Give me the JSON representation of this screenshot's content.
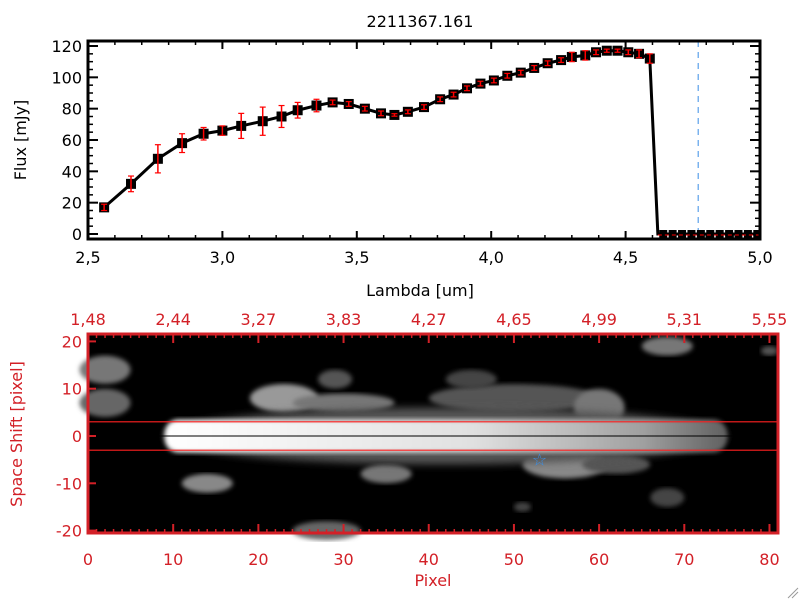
{
  "chart_data": [
    {
      "type": "line",
      "title": "2211367.161",
      "xlabel": "Lambda [um]",
      "ylabel": "Flux [mJy]",
      "xlim": [
        2.5,
        5.0
      ],
      "ylim": [
        -3,
        125
      ],
      "xticks": [
        "2,5",
        "3,0",
        "3,5",
        "4,0",
        "4,5",
        "5,0"
      ],
      "xtick_values": [
        2.5,
        3.0,
        3.5,
        4.0,
        4.5,
        5.0
      ],
      "yticks": [
        "0",
        "20",
        "40",
        "60",
        "80",
        "100",
        "120"
      ],
      "ytick_values": [
        0,
        20,
        40,
        60,
        80,
        100,
        120
      ],
      "series": [
        {
          "name": "flux",
          "x": [
            2.56,
            2.66,
            2.76,
            2.85,
            2.93,
            3.0,
            3.07,
            3.15,
            3.22,
            3.28,
            3.35,
            3.41,
            3.47,
            3.53,
            3.59,
            3.64,
            3.69,
            3.75,
            3.81,
            3.86,
            3.91,
            3.96,
            4.01,
            4.06,
            4.11,
            4.16,
            4.21,
            4.26,
            4.3,
            4.35,
            4.39,
            4.43,
            4.47,
            4.51,
            4.55,
            4.59
          ],
          "y": [
            17,
            32,
            48,
            58,
            64,
            66,
            69,
            72,
            75,
            79,
            82,
            84,
            83,
            80,
            77,
            76,
            78,
            81,
            86,
            89,
            93,
            96,
            98,
            101,
            103,
            106,
            109,
            111,
            113,
            114,
            116,
            117,
            117,
            116,
            115,
            112
          ],
          "err": [
            2,
            5,
            9,
            6,
            4,
            3,
            8,
            9,
            7,
            5,
            4,
            1.5,
            1.5,
            1.5,
            1.5,
            0.8,
            1.2,
            1.5,
            1.5,
            1.5,
            1.5,
            1.5,
            1.5,
            1.5,
            1.5,
            1.5,
            1.5,
            1.5,
            3,
            3,
            1.5,
            1,
            1,
            1.5,
            2.5,
            3
          ]
        }
      ],
      "zero_tail": {
        "x": [
          4.62,
          5.0
        ],
        "y": 0
      },
      "marker_line_lambda": 4.77,
      "colors": {
        "line": "#000000",
        "error": "#ff0000",
        "marker_line": "#3a8ee6",
        "zero_line": "#ff0000"
      }
    },
    {
      "type": "heatmap",
      "xlabel": "Pixel",
      "ylabel": "Space Shift [pixel]",
      "xlim": [
        0,
        81
      ],
      "ylim": [
        -21,
        21
      ],
      "xticks": [
        "0",
        "10",
        "20",
        "30",
        "40",
        "50",
        "60",
        "70",
        "80"
      ],
      "xtick_values": [
        0,
        10,
        20,
        30,
        40,
        50,
        60,
        70,
        80
      ],
      "top_ticks": [
        "1,48",
        "2,44",
        "3,27",
        "3,83",
        "4,27",
        "4,65",
        "4,99",
        "5,31",
        "5,55"
      ],
      "yticks": [
        "20",
        "10",
        "0",
        "-10",
        "-20"
      ],
      "ytick_values": [
        20,
        10,
        0,
        -10,
        -20
      ],
      "aperture_lines": [
        3,
        -3
      ],
      "center_line": 0,
      "star_marker": {
        "pixel": 53,
        "shift": -5
      },
      "colors": {
        "axis": "#d32027",
        "star": "#3a8ee6"
      }
    }
  ]
}
